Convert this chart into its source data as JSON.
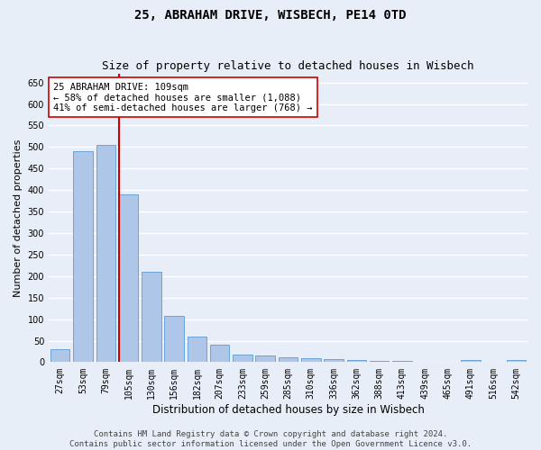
{
  "title1": "25, ABRAHAM DRIVE, WISBECH, PE14 0TD",
  "title2": "Size of property relative to detached houses in Wisbech",
  "xlabel": "Distribution of detached houses by size in Wisbech",
  "ylabel": "Number of detached properties",
  "categories": [
    "27sqm",
    "53sqm",
    "79sqm",
    "105sqm",
    "130sqm",
    "156sqm",
    "182sqm",
    "207sqm",
    "233sqm",
    "259sqm",
    "285sqm",
    "310sqm",
    "336sqm",
    "362sqm",
    "388sqm",
    "413sqm",
    "439sqm",
    "465sqm",
    "491sqm",
    "516sqm",
    "542sqm"
  ],
  "values": [
    30,
    490,
    505,
    390,
    210,
    107,
    60,
    40,
    18,
    15,
    12,
    10,
    8,
    5,
    4,
    4,
    1,
    1,
    5,
    1,
    5
  ],
  "bar_color": "#aec6e8",
  "bar_edgecolor": "#5b9bd5",
  "vline_color": "#cc0000",
  "vline_x_index": 2.575,
  "annotation_text_line1": "25 ABRAHAM DRIVE: 109sqm",
  "annotation_text_line2": "← 58% of detached houses are smaller (1,088)",
  "annotation_text_line3": "41% of semi-detached houses are larger (768) →",
  "annotation_box_facecolor": "#ffffff",
  "annotation_box_edgecolor": "#cc0000",
  "ylim": [
    0,
    670
  ],
  "yticks": [
    0,
    50,
    100,
    150,
    200,
    250,
    300,
    350,
    400,
    450,
    500,
    550,
    600,
    650
  ],
  "background_color": "#e8eef7",
  "grid_color": "#ffffff",
  "footer1": "Contains HM Land Registry data © Crown copyright and database right 2024.",
  "footer2": "Contains public sector information licensed under the Open Government Licence v3.0.",
  "title1_fontsize": 10,
  "title2_fontsize": 9,
  "xlabel_fontsize": 8.5,
  "ylabel_fontsize": 8,
  "tick_fontsize": 7,
  "annotation_fontsize": 7.5,
  "footer_fontsize": 6.5
}
